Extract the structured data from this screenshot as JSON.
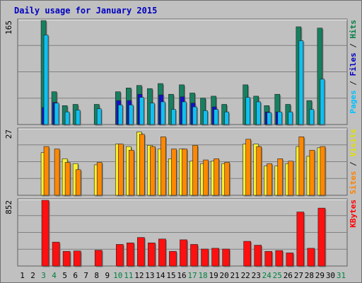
{
  "chart_data": {
    "type": "bar",
    "title": "Daily usage for January 2015",
    "days": [
      "1",
      "2",
      "3",
      "4",
      "5",
      "6",
      "7",
      "8",
      "9",
      "10",
      "11",
      "12",
      "13",
      "14",
      "15",
      "16",
      "17",
      "18",
      "19",
      "20",
      "21",
      "22",
      "23",
      "24",
      "25",
      "26",
      "27",
      "28",
      "29",
      "30",
      "31"
    ],
    "weekend_days": [
      "3",
      "4",
      "10",
      "11",
      "17",
      "18",
      "24",
      "25",
      "31"
    ],
    "panels": [
      {
        "id": "hits",
        "axis_max_label": "165",
        "ylim": [
          0,
          165
        ],
        "labels": [
          {
            "text": "Pages",
            "color": "#00c0ff"
          },
          {
            "text": "Files",
            "color": "#0000c0"
          },
          {
            "text": "Hits",
            "color": "#008040"
          }
        ],
        "series": [
          {
            "name": "Hits",
            "color": "#168060",
            "values": [
              0,
              0,
              165,
              52,
              30,
              32,
              0,
              32,
              0,
              52,
              58,
              62,
              57,
              65,
              48,
              63,
              50,
              42,
              45,
              32,
              0,
              63,
              45,
              30,
              48,
              32,
              155,
              38,
              153,
              0,
              0
            ]
          },
          {
            "name": "Files",
            "color": "#1010d0",
            "values": [
              0,
              0,
              27,
              35,
              0,
              0,
              0,
              0,
              0,
              38,
              38,
              48,
              0,
              47,
              0,
              44,
              34,
              0,
              28,
              0,
              0,
              0,
              0,
              20,
              20,
              0,
              0,
              0,
              0,
              0,
              0
            ]
          },
          {
            "name": "Pages",
            "color": "#10c0f0",
            "values": [
              0,
              0,
              142,
              34,
              20,
              23,
              0,
              25,
              0,
              31,
              31,
              43,
              34,
              36,
              24,
              36,
              28,
              22,
              24,
              20,
              0,
              43,
              36,
              19,
              20,
              20,
              133,
              24,
              72,
              0,
              0
            ]
          }
        ]
      },
      {
        "id": "visits",
        "axis_max_label": "27",
        "ylim": [
          0,
          27
        ],
        "labels": [
          {
            "text": "Sites",
            "color": "#ff8000"
          },
          {
            "text": "Visits",
            "color": "#e0e000"
          }
        ],
        "series": [
          {
            "name": "Visits",
            "color": "#f8f030",
            "values": [
              0,
              0,
              17.5,
              0,
              15,
              13,
              0,
              12.5,
              0,
              21,
              20,
              26,
              20.5,
              19,
              15,
              19,
              14,
              13,
              14,
              13,
              0,
              21,
              21,
              12,
              12,
              13,
              20,
              16,
              19.5,
              0,
              0
            ]
          },
          {
            "name": "Sites",
            "color": "#ff8800",
            "values": [
              0,
              0,
              20,
              19,
              13.5,
              10.5,
              0,
              13.5,
              0,
              21,
              18.5,
              25,
              20,
              24,
              19,
              19,
              20.5,
              14.5,
              15,
              13.5,
              0,
              23,
              20,
              13,
              15,
              14,
              24,
              18.5,
              20,
              0,
              0
            ]
          }
        ]
      },
      {
        "id": "kbytes",
        "axis_max_label": "852",
        "ylim": [
          0,
          852
        ],
        "labels": [
          {
            "text": "KBytes",
            "color": "#ff0000"
          }
        ],
        "series": [
          {
            "name": "KBytes",
            "color": "#ff1010",
            "values": [
              0,
              0,
              852,
              310,
              190,
              195,
              0,
              205,
              0,
              280,
              300,
              370,
              300,
              350,
              190,
              340,
              280,
              220,
              230,
              220,
              0,
              320,
              270,
              190,
              200,
              170,
              700,
              230,
              750,
              0,
              0
            ]
          }
        ]
      }
    ]
  }
}
